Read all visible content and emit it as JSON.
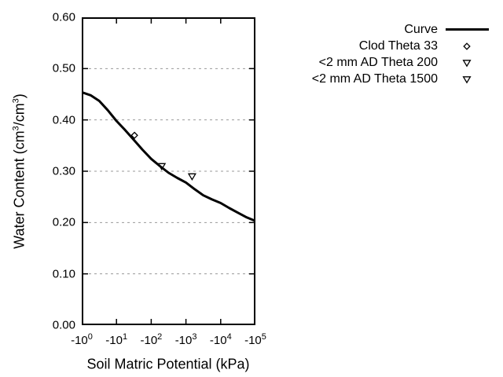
{
  "colors": {
    "foreground": "#000000",
    "background": "#ffffff",
    "grid": "#999999"
  },
  "chart_data": {
    "type": "line",
    "title": "",
    "xlabel": "Soil Matric Potential (kPa)",
    "ylabel": "Water Content (cm^3/cm^3)",
    "x_scale": "log10-of-negative-value",
    "xlim_log_decades": [
      0,
      5
    ],
    "ylim": [
      0,
      0.6
    ],
    "x_tick_labels": [
      "-10^0",
      "-10^1",
      "-10^2",
      "-10^3",
      "-10^4",
      "-10^5"
    ],
    "y_tick_labels": [
      "0.00",
      "0.10",
      "0.20",
      "0.30",
      "0.40",
      "0.50",
      "0.60"
    ],
    "grid": "horizontal-dashed",
    "legend_position": "top-right-outside",
    "series": [
      {
        "name": "Curve",
        "kind": "line",
        "points": [
          [
            -1,
            0.454
          ],
          [
            -1.8,
            0.448
          ],
          [
            -3.2,
            0.437
          ],
          [
            -5.6,
            0.419
          ],
          [
            -10,
            0.398
          ],
          [
            -17.8,
            0.38
          ],
          [
            -31.6,
            0.361
          ],
          [
            -56.2,
            0.342
          ],
          [
            -100,
            0.324
          ],
          [
            -178,
            0.31
          ],
          [
            -316,
            0.297
          ],
          [
            -562,
            0.287
          ],
          [
            -1000,
            0.278
          ],
          [
            -1780,
            0.265
          ],
          [
            -3160,
            0.253
          ],
          [
            -5620,
            0.245
          ],
          [
            -10000,
            0.238
          ],
          [
            -17800,
            0.228
          ],
          [
            -31600,
            0.219
          ],
          [
            -56200,
            0.21
          ],
          [
            -100000,
            0.203
          ]
        ]
      },
      {
        "name": "Clod Theta 33",
        "kind": "scatter",
        "marker": "diamond-open",
        "points": [
          [
            -33,
            0.37
          ]
        ]
      },
      {
        "name": "<2 mm AD Theta 200",
        "kind": "scatter",
        "marker": "triangle-down-open",
        "points": [
          [
            -200,
            0.31
          ]
        ]
      },
      {
        "name": "<2 mm AD Theta 1500",
        "kind": "scatter",
        "marker": "triangle-down-open",
        "points": [
          [
            -1500,
            0.29
          ]
        ]
      }
    ]
  }
}
